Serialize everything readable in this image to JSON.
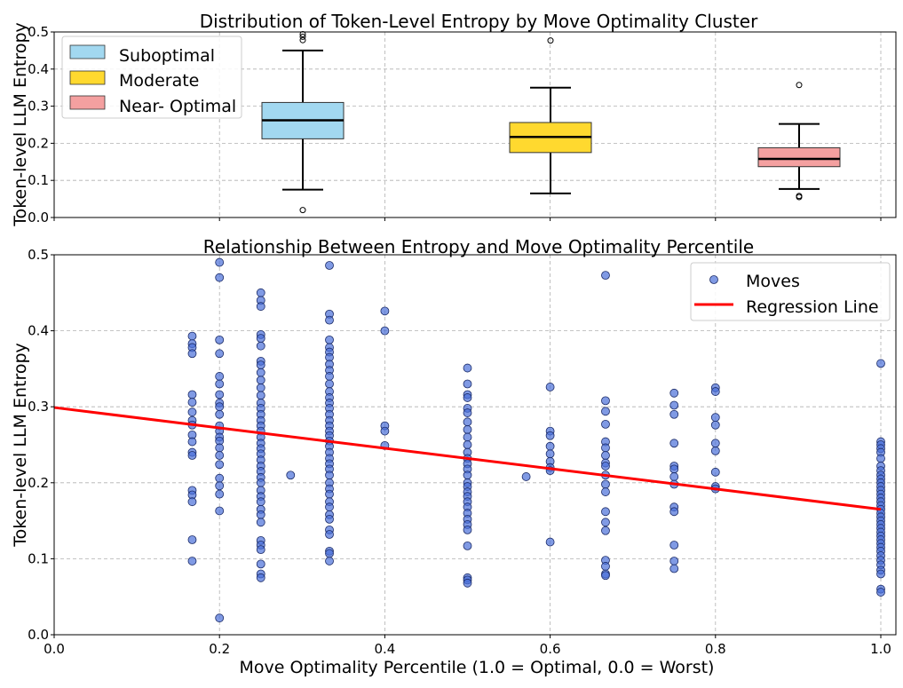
{
  "chart_data": [
    {
      "type": "box",
      "title": "Distribution of Token-Level Entropy by Move Optimality Cluster",
      "ylabel": "Token-level LLM Entropy",
      "ylim": [
        0,
        0.5
      ],
      "yticks": [
        "0.0",
        "0.1",
        "0.2",
        "0.3",
        "0.4",
        "0.5"
      ],
      "grid": true,
      "legend_position": "upper-left",
      "boxes": [
        {
          "name": "Suboptimal",
          "color": "#a2d8f0",
          "q1": 0.212,
          "median": 0.262,
          "q3": 0.31,
          "whisker_low": 0.075,
          "whisker_high": 0.45,
          "outliers": [
            0.494,
            0.487,
            0.478,
            0.02
          ]
        },
        {
          "name": "Moderate",
          "color": "#ffd92f",
          "q1": 0.175,
          "median": 0.217,
          "q3": 0.256,
          "whisker_low": 0.065,
          "whisker_high": 0.35,
          "outliers": [
            0.477
          ]
        },
        {
          "name": "Near- Optimal",
          "color": "#f4a0a0",
          "q1": 0.137,
          "median": 0.158,
          "q3": 0.188,
          "whisker_low": 0.077,
          "whisker_high": 0.252,
          "outliers": [
            0.357,
            0.058,
            0.055
          ]
        }
      ]
    },
    {
      "type": "scatter",
      "title": "Relationship Between Entropy and Move Optimality Percentile",
      "xlabel": "Move Optimality Percentile (1.0 = Optimal, 0.0 = Worst)",
      "ylabel": "Token-level LLM Entropy",
      "xlim": [
        0,
        1
      ],
      "ylim": [
        0,
        0.5
      ],
      "xticks": [
        "0.0",
        "0.2",
        "0.4",
        "0.6",
        "0.8",
        "1.0"
      ],
      "yticks": [
        "0.0",
        "0.1",
        "0.2",
        "0.3",
        "0.4",
        "0.5"
      ],
      "grid": true,
      "legend_position": "upper-right",
      "series": [
        {
          "name": "Moves",
          "color": "#4a6fd8",
          "points": [
            [
              0.167,
              0.393
            ],
            [
              0.167,
              0.383
            ],
            [
              0.167,
              0.378
            ],
            [
              0.167,
              0.37
            ],
            [
              0.167,
              0.316
            ],
            [
              0.167,
              0.306
            ],
            [
              0.167,
              0.293
            ],
            [
              0.167,
              0.282
            ],
            [
              0.167,
              0.276
            ],
            [
              0.167,
              0.263
            ],
            [
              0.167,
              0.254
            ],
            [
              0.167,
              0.24
            ],
            [
              0.167,
              0.236
            ],
            [
              0.167,
              0.19
            ],
            [
              0.167,
              0.184
            ],
            [
              0.167,
              0.175
            ],
            [
              0.167,
              0.125
            ],
            [
              0.167,
              0.097
            ],
            [
              0.2,
              0.49
            ],
            [
              0.2,
              0.47
            ],
            [
              0.2,
              0.388
            ],
            [
              0.2,
              0.37
            ],
            [
              0.2,
              0.34
            ],
            [
              0.2,
              0.33
            ],
            [
              0.2,
              0.316
            ],
            [
              0.2,
              0.305
            ],
            [
              0.2,
              0.3
            ],
            [
              0.2,
              0.29
            ],
            [
              0.2,
              0.275
            ],
            [
              0.2,
              0.268
            ],
            [
              0.2,
              0.26
            ],
            [
              0.2,
              0.255
            ],
            [
              0.2,
              0.246
            ],
            [
              0.2,
              0.236
            ],
            [
              0.2,
              0.224
            ],
            [
              0.2,
              0.206
            ],
            [
              0.2,
              0.196
            ],
            [
              0.2,
              0.185
            ],
            [
              0.2,
              0.163
            ],
            [
              0.2,
              0.022
            ],
            [
              0.25,
              0.45
            ],
            [
              0.25,
              0.44
            ],
            [
              0.25,
              0.432
            ],
            [
              0.25,
              0.395
            ],
            [
              0.25,
              0.39
            ],
            [
              0.25,
              0.38
            ],
            [
              0.25,
              0.36
            ],
            [
              0.25,
              0.355
            ],
            [
              0.25,
              0.345
            ],
            [
              0.25,
              0.335
            ],
            [
              0.25,
              0.325
            ],
            [
              0.25,
              0.315
            ],
            [
              0.25,
              0.305
            ],
            [
              0.25,
              0.298
            ],
            [
              0.25,
              0.29
            ],
            [
              0.25,
              0.282
            ],
            [
              0.25,
              0.275
            ],
            [
              0.25,
              0.268
            ],
            [
              0.25,
              0.26
            ],
            [
              0.25,
              0.252
            ],
            [
              0.25,
              0.245
            ],
            [
              0.25,
              0.238
            ],
            [
              0.25,
              0.23
            ],
            [
              0.25,
              0.222
            ],
            [
              0.25,
              0.215
            ],
            [
              0.25,
              0.207
            ],
            [
              0.25,
              0.2
            ],
            [
              0.25,
              0.19
            ],
            [
              0.25,
              0.182
            ],
            [
              0.25,
              0.175
            ],
            [
              0.25,
              0.165
            ],
            [
              0.25,
              0.158
            ],
            [
              0.25,
              0.148
            ],
            [
              0.25,
              0.124
            ],
            [
              0.25,
              0.118
            ],
            [
              0.25,
              0.112
            ],
            [
              0.25,
              0.093
            ],
            [
              0.25,
              0.08
            ],
            [
              0.25,
              0.075
            ],
            [
              0.286,
              0.21
            ],
            [
              0.333,
              0.486
            ],
            [
              0.333,
              0.422
            ],
            [
              0.333,
              0.414
            ],
            [
              0.333,
              0.388
            ],
            [
              0.333,
              0.378
            ],
            [
              0.333,
              0.372
            ],
            [
              0.333,
              0.365
            ],
            [
              0.333,
              0.356
            ],
            [
              0.333,
              0.348
            ],
            [
              0.333,
              0.34
            ],
            [
              0.333,
              0.33
            ],
            [
              0.333,
              0.32
            ],
            [
              0.333,
              0.312
            ],
            [
              0.333,
              0.305
            ],
            [
              0.333,
              0.298
            ],
            [
              0.333,
              0.29
            ],
            [
              0.333,
              0.282
            ],
            [
              0.333,
              0.275
            ],
            [
              0.333,
              0.268
            ],
            [
              0.333,
              0.262
            ],
            [
              0.333,
              0.255
            ],
            [
              0.333,
              0.248
            ],
            [
              0.333,
              0.24
            ],
            [
              0.333,
              0.232
            ],
            [
              0.333,
              0.225
            ],
            [
              0.333,
              0.218
            ],
            [
              0.333,
              0.21
            ],
            [
              0.333,
              0.2
            ],
            [
              0.333,
              0.192
            ],
            [
              0.333,
              0.185
            ],
            [
              0.333,
              0.175
            ],
            [
              0.333,
              0.168
            ],
            [
              0.333,
              0.158
            ],
            [
              0.333,
              0.152
            ],
            [
              0.333,
              0.138
            ],
            [
              0.333,
              0.132
            ],
            [
              0.333,
              0.11
            ],
            [
              0.333,
              0.107
            ],
            [
              0.333,
              0.097
            ],
            [
              0.4,
              0.426
            ],
            [
              0.4,
              0.4
            ],
            [
              0.4,
              0.275
            ],
            [
              0.4,
              0.268
            ],
            [
              0.4,
              0.249
            ],
            [
              0.5,
              0.351
            ],
            [
              0.5,
              0.33
            ],
            [
              0.5,
              0.316
            ],
            [
              0.5,
              0.312
            ],
            [
              0.5,
              0.298
            ],
            [
              0.5,
              0.292
            ],
            [
              0.5,
              0.28
            ],
            [
              0.5,
              0.27
            ],
            [
              0.5,
              0.26
            ],
            [
              0.5,
              0.25
            ],
            [
              0.5,
              0.24
            ],
            [
              0.5,
              0.232
            ],
            [
              0.5,
              0.225
            ],
            [
              0.5,
              0.218
            ],
            [
              0.5,
              0.21
            ],
            [
              0.5,
              0.2
            ],
            [
              0.5,
              0.195
            ],
            [
              0.5,
              0.188
            ],
            [
              0.5,
              0.182
            ],
            [
              0.5,
              0.175
            ],
            [
              0.5,
              0.168
            ],
            [
              0.5,
              0.16
            ],
            [
              0.5,
              0.152
            ],
            [
              0.5,
              0.145
            ],
            [
              0.5,
              0.138
            ],
            [
              0.5,
              0.117
            ],
            [
              0.5,
              0.075
            ],
            [
              0.5,
              0.072
            ],
            [
              0.5,
              0.068
            ],
            [
              0.571,
              0.208
            ],
            [
              0.6,
              0.326
            ],
            [
              0.6,
              0.268
            ],
            [
              0.6,
              0.262
            ],
            [
              0.6,
              0.248
            ],
            [
              0.6,
              0.238
            ],
            [
              0.6,
              0.228
            ],
            [
              0.6,
              0.22
            ],
            [
              0.6,
              0.216
            ],
            [
              0.6,
              0.122
            ],
            [
              0.667,
              0.473
            ],
            [
              0.667,
              0.308
            ],
            [
              0.667,
              0.294
            ],
            [
              0.667,
              0.277
            ],
            [
              0.667,
              0.254
            ],
            [
              0.667,
              0.246
            ],
            [
              0.667,
              0.236
            ],
            [
              0.667,
              0.226
            ],
            [
              0.667,
              0.222
            ],
            [
              0.667,
              0.21
            ],
            [
              0.667,
              0.198
            ],
            [
              0.667,
              0.188
            ],
            [
              0.667,
              0.162
            ],
            [
              0.667,
              0.148
            ],
            [
              0.667,
              0.137
            ],
            [
              0.667,
              0.098
            ],
            [
              0.667,
              0.09
            ],
            [
              0.667,
              0.08
            ],
            [
              0.667,
              0.078
            ],
            [
              0.75,
              0.318
            ],
            [
              0.75,
              0.302
            ],
            [
              0.75,
              0.29
            ],
            [
              0.75,
              0.252
            ],
            [
              0.75,
              0.222
            ],
            [
              0.75,
              0.218
            ],
            [
              0.75,
              0.208
            ],
            [
              0.75,
              0.198
            ],
            [
              0.75,
              0.168
            ],
            [
              0.75,
              0.162
            ],
            [
              0.75,
              0.118
            ],
            [
              0.75,
              0.097
            ],
            [
              0.75,
              0.087
            ],
            [
              0.8,
              0.325
            ],
            [
              0.8,
              0.32
            ],
            [
              0.8,
              0.286
            ],
            [
              0.8,
              0.276
            ],
            [
              0.8,
              0.252
            ],
            [
              0.8,
              0.242
            ],
            [
              0.8,
              0.214
            ],
            [
              0.8,
              0.195
            ],
            [
              0.8,
              0.192
            ],
            [
              1.0,
              0.357
            ],
            [
              1.0,
              0.254
            ],
            [
              1.0,
              0.25
            ],
            [
              1.0,
              0.245
            ],
            [
              1.0,
              0.24
            ],
            [
              1.0,
              0.232
            ],
            [
              1.0,
              0.222
            ],
            [
              1.0,
              0.216
            ],
            [
              1.0,
              0.21
            ],
            [
              1.0,
              0.205
            ],
            [
              1.0,
              0.2
            ],
            [
              1.0,
              0.195
            ],
            [
              1.0,
              0.19
            ],
            [
              1.0,
              0.185
            ],
            [
              1.0,
              0.18
            ],
            [
              1.0,
              0.175
            ],
            [
              1.0,
              0.17
            ],
            [
              1.0,
              0.165
            ],
            [
              1.0,
              0.16
            ],
            [
              1.0,
              0.155
            ],
            [
              1.0,
              0.15
            ],
            [
              1.0,
              0.145
            ],
            [
              1.0,
              0.14
            ],
            [
              1.0,
              0.135
            ],
            [
              1.0,
              0.13
            ],
            [
              1.0,
              0.125
            ],
            [
              1.0,
              0.12
            ],
            [
              1.0,
              0.115
            ],
            [
              1.0,
              0.11
            ],
            [
              1.0,
              0.104
            ],
            [
              1.0,
              0.098
            ],
            [
              1.0,
              0.092
            ],
            [
              1.0,
              0.085
            ],
            [
              1.0,
              0.08
            ],
            [
              1.0,
              0.06
            ],
            [
              1.0,
              0.056
            ]
          ]
        },
        {
          "name": "Regression Line",
          "color": "#ff0000",
          "line": [
            [
              0.0,
              0.299
            ],
            [
              1.0,
              0.165
            ]
          ]
        }
      ]
    }
  ]
}
